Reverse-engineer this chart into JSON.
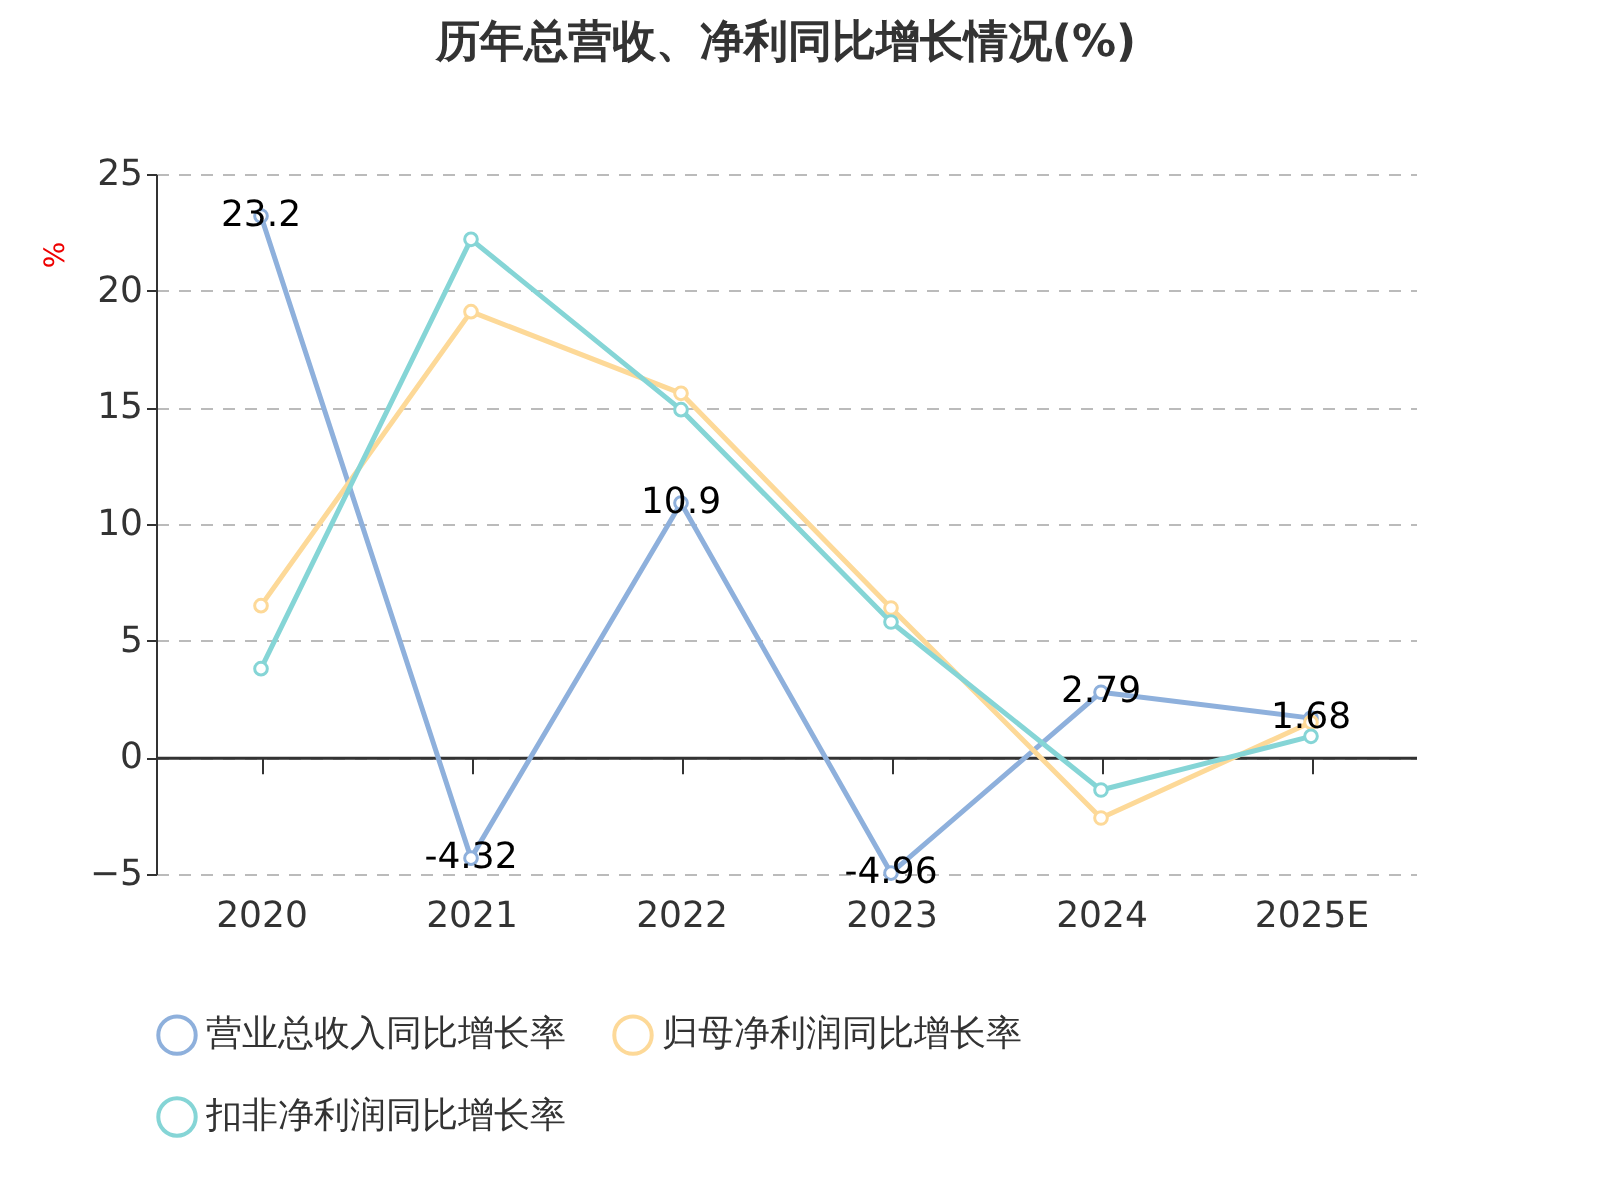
{
  "chart_data": {
    "type": "line",
    "title": "历年总营收、净利同比增长情况(%)",
    "ylabel": "%",
    "categories": [
      "2020",
      "2021",
      "2022",
      "2023",
      "2024",
      "2025E"
    ],
    "series": [
      {
        "name": "营业总收入同比增长率",
        "color": "#8eb0dc",
        "values": [
          23.2,
          -4.32,
          10.9,
          -4.96,
          2.79,
          1.68
        ],
        "value_labels": [
          "23.2",
          "-4.32",
          "10.9",
          "-4.96",
          "2.79",
          "1.68"
        ]
      },
      {
        "name": "归母净利润同比增长率",
        "color": "#fdd998",
        "values": [
          6.5,
          19.1,
          15.6,
          6.4,
          -2.6,
          1.5
        ]
      },
      {
        "name": "扣非净利润同比增长率",
        "color": "#85d5d6",
        "values": [
          3.8,
          22.2,
          14.9,
          5.8,
          -1.4,
          0.9
        ]
      }
    ],
    "ylim": [
      -5,
      25
    ],
    "yticks": [
      -5,
      0,
      5,
      10,
      15,
      20,
      25
    ],
    "grid": "y",
    "legend": "bottom",
    "marker": "circle",
    "line_style": "solid"
  }
}
